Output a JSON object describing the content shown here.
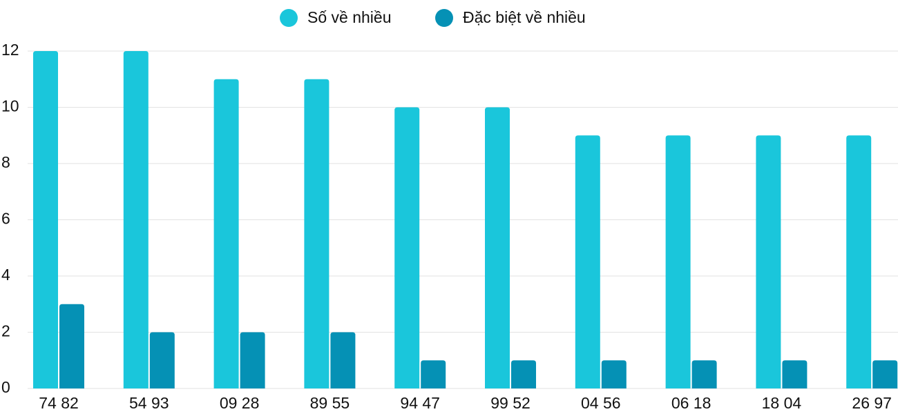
{
  "chart_data": {
    "type": "bar",
    "categories": [
      "74 82",
      "54 93",
      "09 28",
      "89 55",
      "94 47",
      "99 52",
      "04 56",
      "06 18",
      "18 04",
      "26 97"
    ],
    "series": [
      {
        "name": "Số về nhiều",
        "color": "#1ac6db",
        "values": [
          12,
          12,
          11,
          11,
          10,
          10,
          9,
          9,
          9,
          9
        ]
      },
      {
        "name": "Đặc biệt về nhiều",
        "color": "#0591b5",
        "values": [
          3,
          2,
          2,
          2,
          1,
          1,
          1,
          1,
          1,
          1
        ]
      }
    ],
    "ylim": [
      0,
      12
    ],
    "yticks": [
      0,
      2,
      4,
      6,
      8,
      10,
      12
    ],
    "grid": true,
    "legend": "top"
  }
}
